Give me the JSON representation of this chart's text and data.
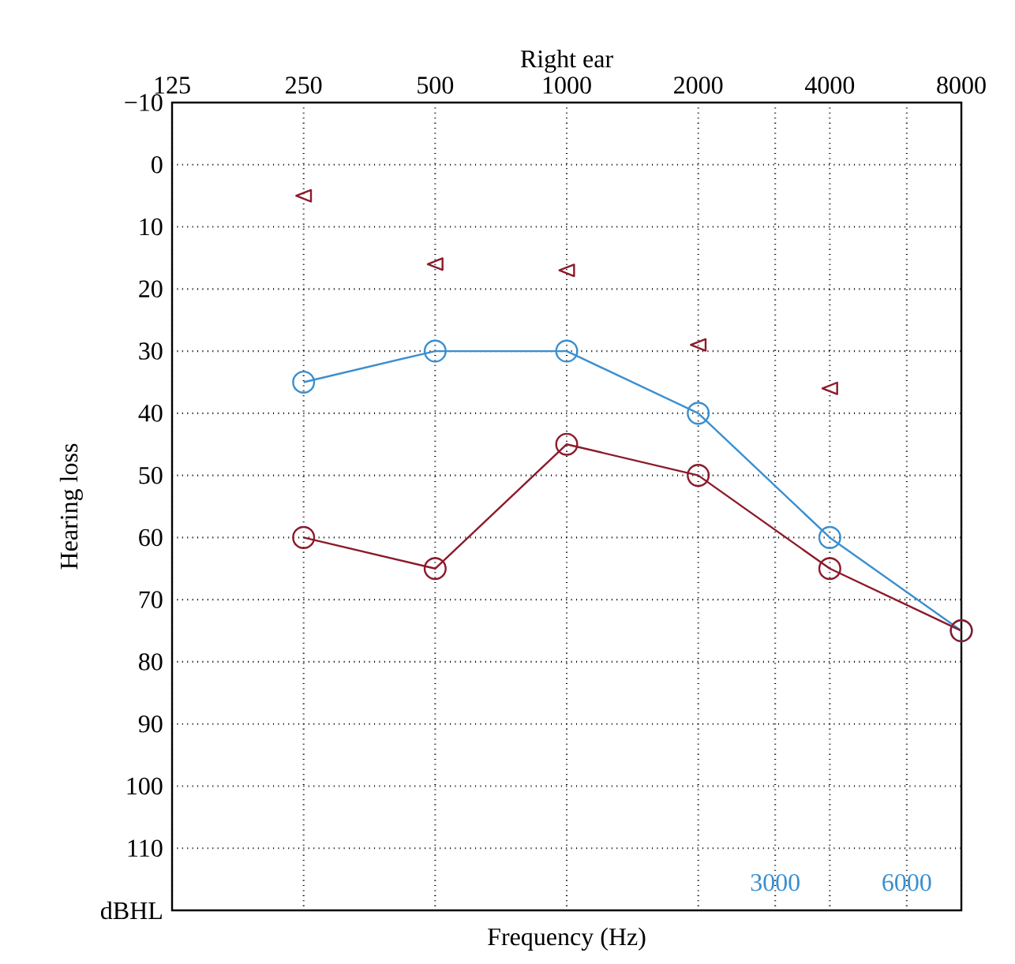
{
  "chart_data": {
    "type": "line",
    "title": "Right ear",
    "xlabel": "Frequency (Hz)",
    "ylabel": "Hearing loss",
    "log": "x",
    "xlim": [
      125,
      8000
    ],
    "ylim": [
      120,
      -10
    ],
    "xticks": [
      125,
      250,
      500,
      1000,
      2000,
      {
        "value": 3000,
        "label": null
      },
      4000,
      {
        "value": 6000,
        "label": null
      },
      8000
    ],
    "annotations": [
      "3000",
      "6000"
    ],
    "yticks": [
      {
        "value": -10,
        "label": "−10"
      },
      0,
      10,
      20,
      30,
      40,
      50,
      60,
      70,
      80,
      90,
      100,
      110,
      {
        "value": 120,
        "label": "dBHL"
      }
    ],
    "grid": true,
    "marker": "circle",
    "line_style": "solid",
    "x": [
      250,
      500,
      1000,
      2000,
      4000,
      8000
    ],
    "series": [
      {
        "color": "#3a8fd0",
        "values": [
          35,
          30,
          30,
          40,
          60,
          75
        ]
      },
      {
        "color": "#8b1a2a",
        "values": [
          60,
          65,
          45,
          50,
          65,
          75
        ]
      },
      {
        "type": "scatter",
        "marker": "triangle",
        "color": "#8b1a2a",
        "x": [
          250,
          500,
          1000,
          2000,
          4000
        ],
        "values": [
          5,
          16,
          17,
          29,
          36
        ]
      }
    ]
  }
}
